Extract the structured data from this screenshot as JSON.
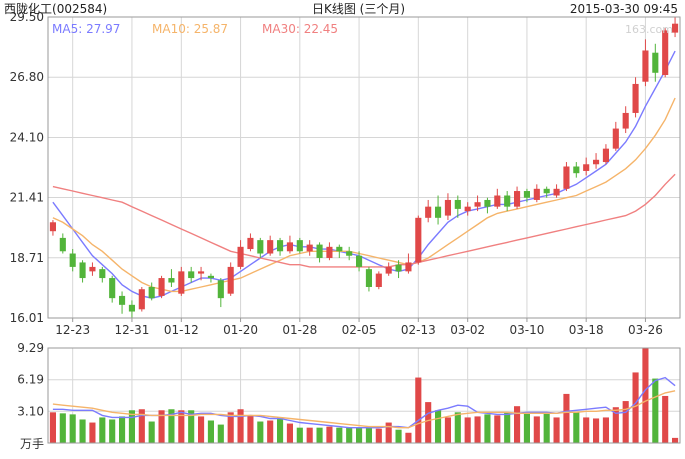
{
  "header": {
    "stock_name": "西陇化工",
    "stock_code": "(002584)",
    "chart_title": "日K线图 (三个月)",
    "timestamp": "2015-03-30 09:45",
    "watermark": "163.com"
  },
  "ma_legend": [
    {
      "label": "MA5:",
      "value": "27.97",
      "color": "#7b7bff"
    },
    {
      "label": "MA10:",
      "value": "25.87",
      "color": "#f5b46a"
    },
    {
      "label": "MA30:",
      "value": "22.45",
      "color": "#f08080"
    }
  ],
  "colors": {
    "up": "#e04848",
    "down": "#52b43a",
    "grid": "#d6d6d6",
    "frame": "#9a9a9a"
  },
  "chart_data": [
    {
      "type": "candlestick",
      "title": "日K线图 (三个月)",
      "y_ticks": [
        "29.50",
        "26.80",
        "24.10",
        "21.41",
        "18.71",
        "16.01"
      ],
      "ylim": [
        16.01,
        29.5
      ],
      "x_ticks": [
        {
          "label": "12-23",
          "index": 2
        },
        {
          "label": "12-31",
          "index": 8
        },
        {
          "label": "01-12",
          "index": 13
        },
        {
          "label": "01-20",
          "index": 19
        },
        {
          "label": "01-28",
          "index": 25
        },
        {
          "label": "02-05",
          "index": 31
        },
        {
          "label": "02-13",
          "index": 37
        },
        {
          "label": "03-02",
          "index": 42
        },
        {
          "label": "03-10",
          "index": 48
        },
        {
          "label": "03-18",
          "index": 54
        },
        {
          "label": "03-26",
          "index": 60
        }
      ],
      "candles": [
        [
          19.9,
          20.3,
          20.4,
          19.7
        ],
        [
          19.6,
          19.0,
          19.8,
          18.9
        ],
        [
          18.9,
          18.3,
          19.1,
          18.1
        ],
        [
          18.5,
          17.8,
          18.6,
          17.6
        ],
        [
          18.1,
          18.3,
          18.5,
          17.9
        ],
        [
          18.2,
          17.8,
          18.3,
          17.6
        ],
        [
          17.8,
          16.9,
          17.9,
          16.7
        ],
        [
          17.0,
          16.6,
          17.2,
          16.2
        ],
        [
          16.6,
          16.3,
          16.8,
          16.0
        ],
        [
          16.4,
          17.3,
          17.4,
          16.3
        ],
        [
          17.4,
          16.9,
          17.6,
          16.8
        ],
        [
          17.0,
          17.8,
          17.9,
          16.9
        ],
        [
          17.8,
          17.6,
          18.2,
          17.4
        ],
        [
          17.1,
          18.1,
          18.3,
          17.0
        ],
        [
          18.1,
          17.8,
          18.3,
          17.6
        ],
        [
          18.0,
          18.1,
          18.3,
          17.7
        ],
        [
          17.9,
          17.8,
          18.0,
          17.6
        ],
        [
          17.7,
          16.9,
          17.8,
          16.5
        ],
        [
          17.1,
          18.3,
          18.5,
          17.0
        ],
        [
          18.3,
          19.2,
          19.5,
          18.2
        ],
        [
          19.1,
          19.6,
          19.8,
          19.0
        ],
        [
          19.5,
          18.9,
          19.6,
          18.7
        ],
        [
          18.9,
          19.5,
          19.7,
          18.8
        ],
        [
          19.5,
          19.0,
          19.6,
          18.8
        ],
        [
          19.0,
          19.4,
          19.7,
          18.9
        ],
        [
          19.5,
          19.0,
          19.6,
          18.9
        ],
        [
          19.0,
          19.3,
          19.5,
          18.8
        ],
        [
          19.3,
          18.7,
          19.4,
          18.5
        ],
        [
          18.7,
          19.2,
          19.4,
          18.6
        ],
        [
          19.2,
          19.0,
          19.3,
          18.7
        ],
        [
          19.0,
          18.8,
          19.2,
          18.6
        ],
        [
          18.8,
          18.3,
          19.0,
          18.1
        ],
        [
          18.2,
          17.4,
          18.3,
          17.2
        ],
        [
          17.4,
          18.0,
          18.1,
          17.3
        ],
        [
          18.0,
          18.3,
          18.5,
          17.9
        ],
        [
          18.4,
          18.1,
          18.6,
          17.8
        ],
        [
          18.1,
          18.5,
          18.9,
          18.0
        ],
        [
          18.5,
          20.5,
          20.6,
          18.4
        ],
        [
          20.5,
          21.0,
          21.3,
          20.3
        ],
        [
          21.0,
          20.5,
          21.5,
          20.2
        ],
        [
          20.6,
          21.3,
          21.6,
          20.4
        ],
        [
          21.3,
          20.9,
          21.5,
          20.5
        ],
        [
          20.8,
          21.0,
          21.2,
          20.6
        ],
        [
          21.0,
          21.2,
          21.5,
          20.8
        ],
        [
          21.3,
          21.0,
          21.4,
          20.7
        ],
        [
          21.0,
          21.5,
          21.8,
          20.9
        ],
        [
          21.5,
          21.0,
          21.7,
          20.8
        ],
        [
          21.0,
          21.7,
          21.9,
          20.9
        ],
        [
          21.7,
          21.4,
          21.8,
          21.2
        ],
        [
          21.3,
          21.8,
          22.0,
          21.2
        ],
        [
          21.8,
          21.6,
          21.9,
          21.4
        ],
        [
          21.5,
          21.8,
          22.0,
          21.4
        ],
        [
          21.8,
          22.8,
          23.0,
          21.7
        ],
        [
          22.8,
          22.5,
          23.0,
          22.3
        ],
        [
          22.6,
          22.9,
          23.2,
          22.4
        ],
        [
          22.9,
          23.1,
          23.4,
          22.7
        ],
        [
          23.0,
          23.6,
          23.8,
          22.9
        ],
        [
          23.6,
          24.5,
          24.8,
          23.5
        ],
        [
          24.5,
          25.2,
          25.5,
          24.3
        ],
        [
          25.2,
          26.5,
          26.8,
          25.0
        ],
        [
          26.6,
          28.0,
          28.5,
          26.4
        ],
        [
          27.9,
          27.0,
          28.3,
          26.6
        ],
        [
          26.9,
          28.9,
          29.0,
          26.8
        ],
        [
          28.8,
          29.2,
          29.5,
          28.6
        ]
      ],
      "series": [
        {
          "name": "MA5",
          "color": "#7b7bff",
          "values": [
            21.2,
            20.6,
            20.0,
            19.4,
            18.8,
            18.4,
            18.0,
            17.5,
            17.2,
            17.0,
            16.9,
            17.0,
            17.2,
            17.4,
            17.6,
            17.8,
            17.8,
            17.7,
            17.8,
            18.1,
            18.4,
            18.7,
            19.0,
            19.2,
            19.3,
            19.2,
            19.2,
            19.1,
            19.1,
            19.0,
            18.9,
            18.8,
            18.6,
            18.4,
            18.2,
            18.1,
            18.2,
            18.7,
            19.3,
            19.8,
            20.3,
            20.6,
            20.8,
            20.9,
            21.0,
            21.1,
            21.1,
            21.2,
            21.3,
            21.4,
            21.5,
            21.6,
            21.8,
            22.0,
            22.3,
            22.6,
            22.9,
            23.4,
            23.9,
            24.6,
            25.5,
            26.3,
            27.1,
            27.97
          ]
        },
        {
          "name": "MA10",
          "color": "#f5b46a",
          "values": [
            20.5,
            20.3,
            20.0,
            19.7,
            19.3,
            19.0,
            18.6,
            18.2,
            17.9,
            17.6,
            17.4,
            17.3,
            17.2,
            17.2,
            17.3,
            17.4,
            17.5,
            17.6,
            17.7,
            17.8,
            18.0,
            18.2,
            18.4,
            18.6,
            18.8,
            18.9,
            19.0,
            19.0,
            19.0,
            19.0,
            19.0,
            18.9,
            18.8,
            18.7,
            18.6,
            18.5,
            18.4,
            18.5,
            18.7,
            19.0,
            19.3,
            19.6,
            19.9,
            20.2,
            20.5,
            20.7,
            20.8,
            20.9,
            21.0,
            21.1,
            21.2,
            21.3,
            21.4,
            21.5,
            21.7,
            21.9,
            22.1,
            22.4,
            22.7,
            23.1,
            23.6,
            24.2,
            24.9,
            25.87
          ]
        },
        {
          "name": "MA30",
          "color": "#f08080",
          "values": [
            21.9,
            21.8,
            21.7,
            21.6,
            21.5,
            21.4,
            21.3,
            21.2,
            21.0,
            20.8,
            20.6,
            20.4,
            20.2,
            20.0,
            19.8,
            19.6,
            19.4,
            19.2,
            19.0,
            18.9,
            18.8,
            18.7,
            18.6,
            18.5,
            18.4,
            18.4,
            18.3,
            18.3,
            18.3,
            18.3,
            18.3,
            18.3,
            18.3,
            18.3,
            18.3,
            18.4,
            18.4,
            18.5,
            18.6,
            18.7,
            18.8,
            18.9,
            19.0,
            19.1,
            19.2,
            19.3,
            19.4,
            19.5,
            19.6,
            19.7,
            19.8,
            19.9,
            20.0,
            20.1,
            20.2,
            20.3,
            20.4,
            20.5,
            20.6,
            20.8,
            21.1,
            21.5,
            22.0,
            22.45
          ]
        }
      ]
    },
    {
      "type": "bar",
      "title": "",
      "unit_label": "万手",
      "y_ticks": [
        "9.29",
        "6.19",
        "3.10"
      ],
      "ylim": [
        0,
        9.29
      ],
      "values": [
        3.0,
        2.9,
        2.8,
        2.3,
        2.0,
        2.5,
        2.3,
        2.6,
        3.2,
        3.3,
        2.1,
        3.2,
        3.3,
        3.2,
        3.2,
        2.6,
        2.2,
        1.8,
        3.0,
        3.3,
        2.7,
        2.1,
        2.2,
        2.5,
        1.9,
        1.5,
        1.5,
        1.5,
        1.6,
        1.5,
        1.5,
        1.5,
        1.5,
        1.4,
        2.0,
        1.3,
        1.0,
        6.4,
        4.0,
        3.2,
        2.5,
        3.0,
        2.5,
        2.6,
        2.8,
        2.7,
        3.0,
        3.6,
        2.9,
        2.6,
        3.0,
        2.5,
        4.8,
        3.0,
        2.5,
        2.4,
        2.5,
        3.5,
        4.1,
        6.9,
        9.29,
        6.3,
        4.6,
        0.5
      ],
      "series": [
        {
          "name": "MA5",
          "color": "#7b7bff",
          "values": [
            3.3,
            3.3,
            3.2,
            3.2,
            3.2,
            2.7,
            2.5,
            2.5,
            2.5,
            2.7,
            2.7,
            2.7,
            2.8,
            3.0,
            2.8,
            2.9,
            2.9,
            2.7,
            2.6,
            2.6,
            2.7,
            2.6,
            2.4,
            2.4,
            2.2,
            2.0,
            1.9,
            1.8,
            1.7,
            1.6,
            1.5,
            1.5,
            1.5,
            1.5,
            1.6,
            1.6,
            1.5,
            2.2,
            2.9,
            3.2,
            3.4,
            3.7,
            3.6,
            3.0,
            2.9,
            2.8,
            2.8,
            2.9,
            3.0,
            3.0,
            3.0,
            2.9,
            3.1,
            3.2,
            3.3,
            3.4,
            3.5,
            2.9,
            3.0,
            3.9,
            5.2,
            6.1,
            6.4,
            5.6
          ]
        },
        {
          "name": "MA10",
          "color": "#f5b46a",
          "values": [
            3.8,
            3.7,
            3.6,
            3.5,
            3.4,
            3.2,
            3.0,
            2.9,
            2.8,
            2.8,
            2.7,
            2.7,
            2.7,
            2.7,
            2.7,
            2.8,
            2.8,
            2.8,
            2.7,
            2.7,
            2.7,
            2.7,
            2.6,
            2.5,
            2.4,
            2.3,
            2.2,
            2.1,
            2.0,
            1.9,
            1.8,
            1.7,
            1.6,
            1.6,
            1.6,
            1.5,
            1.5,
            1.9,
            2.2,
            2.4,
            2.6,
            2.8,
            2.9,
            3.0,
            3.0,
            3.0,
            3.0,
            2.9,
            2.9,
            2.9,
            2.9,
            2.9,
            3.0,
            3.0,
            3.1,
            3.1,
            3.2,
            3.2,
            3.3,
            3.6,
            4.1,
            4.5,
            4.9,
            5.1
          ]
        }
      ]
    }
  ]
}
